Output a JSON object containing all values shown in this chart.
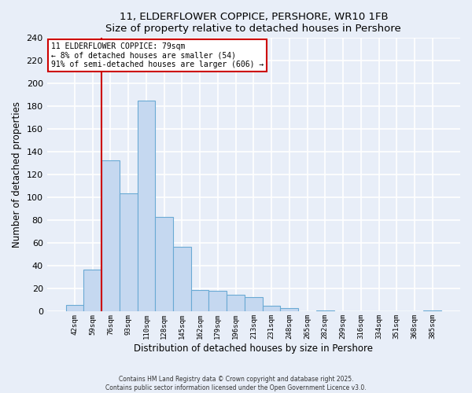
{
  "title1": "11, ELDERFLOWER COPPICE, PERSHORE, WR10 1FB",
  "title2": "Size of property relative to detached houses in Pershore",
  "xlabel": "Distribution of detached houses by size in Pershore",
  "ylabel": "Number of detached properties",
  "bar_labels": [
    "42sqm",
    "59sqm",
    "76sqm",
    "93sqm",
    "110sqm",
    "128sqm",
    "145sqm",
    "162sqm",
    "179sqm",
    "196sqm",
    "213sqm",
    "231sqm",
    "248sqm",
    "265sqm",
    "282sqm",
    "299sqm",
    "316sqm",
    "334sqm",
    "351sqm",
    "368sqm",
    "385sqm"
  ],
  "bar_values": [
    6,
    37,
    133,
    104,
    185,
    83,
    57,
    19,
    18,
    15,
    13,
    5,
    3,
    0,
    1,
    0,
    0,
    0,
    0,
    0,
    1
  ],
  "bar_color": "#c5d8f0",
  "bar_edge_color": "#6aaad4",
  "vline_x": 2,
  "vline_color": "#cc0000",
  "ylim": [
    0,
    240
  ],
  "yticks": [
    0,
    20,
    40,
    60,
    80,
    100,
    120,
    140,
    160,
    180,
    200,
    220,
    240
  ],
  "annotation_title": "11 ELDERFLOWER COPPICE: 79sqm",
  "annotation_line1": "← 8% of detached houses are smaller (54)",
  "annotation_line2": "91% of semi-detached houses are larger (606) →",
  "annotation_box_color": "#ffffff",
  "annotation_box_edge": "#cc0000",
  "footer1": "Contains HM Land Registry data © Crown copyright and database right 2025.",
  "footer2": "Contains public sector information licensed under the Open Government Licence v3.0.",
  "background_color": "#e8eef8",
  "grid_color": "#ffffff",
  "plot_bg_color": "#e8eef8"
}
